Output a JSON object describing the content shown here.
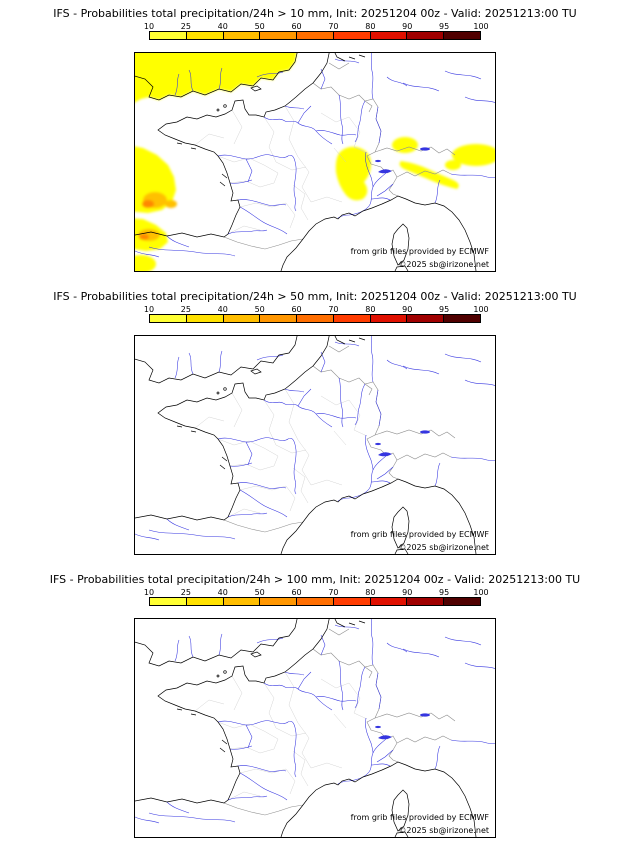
{
  "colorbar": {
    "labels": [
      "10",
      "25",
      "40",
      "50",
      "60",
      "70",
      "80",
      "90",
      "95",
      "100"
    ],
    "colors": [
      "#ffff33",
      "#ffe100",
      "#ffbe00",
      "#ff9600",
      "#ff6e00",
      "#ff3c00",
      "#e01000",
      "#a00000",
      "#500000"
    ]
  },
  "credits": {
    "source": "from grib files provided by ECMWF",
    "copyright": "©2025 sb@irizone.net"
  },
  "panels": [
    {
      "title": "IFS - Probabilities total precipitation/24h > 10 mm, Init: 20251204 00z - Valid: 20251213:00 TU",
      "threshold_label": "> 10 mm",
      "show_precipitation": true
    },
    {
      "title": "IFS - Probabilities total precipitation/24h > 50 mm, Init: 20251204 00z - Valid: 20251213:00 TU",
      "threshold_label": "> 50 mm",
      "show_precipitation": false
    },
    {
      "title": "IFS - Probabilities total precipitation/24h > 100 mm, Init: 20251204 00z - Valid: 20251213:00 TU",
      "threshold_label": "> 100 mm",
      "show_precipitation": false
    }
  ]
}
